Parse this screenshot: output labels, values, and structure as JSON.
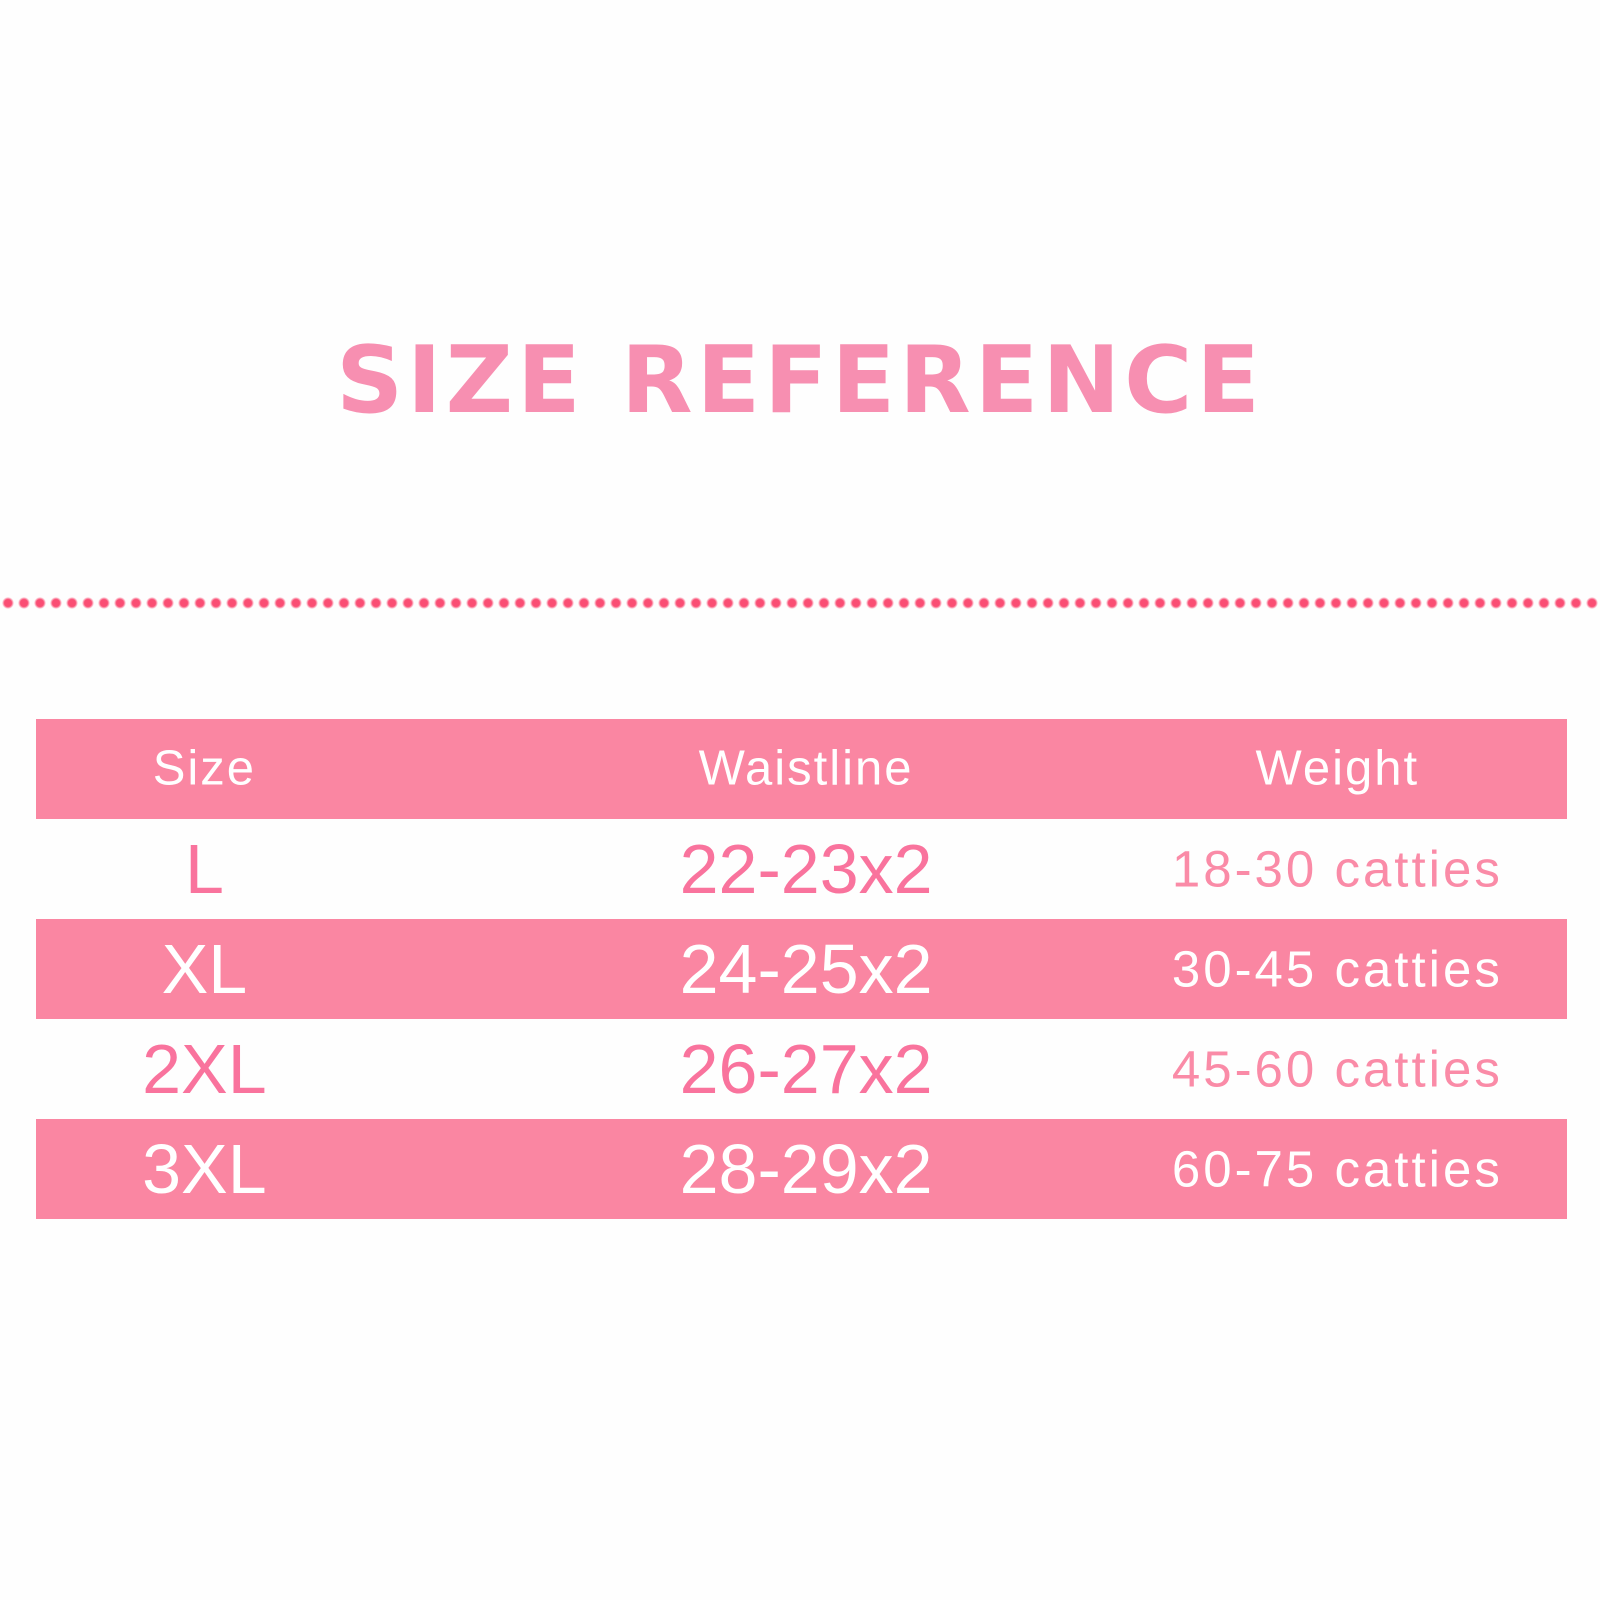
{
  "ui": {
    "background_color": "#FEFEFE",
    "title_color": "#F78FB1",
    "divider_dot_color": "#FA4E74",
    "band_pink": "#FA86A2",
    "value_text_pink": "#F9739D",
    "weight_text_pink": "#FA8BA7",
    "header_text_color": "#FFFFFF"
  },
  "chart_data": {
    "type": "table",
    "title": "SIZE REFERENCE",
    "columns": [
      "Size",
      "Waistline",
      "Weight"
    ],
    "rows": [
      [
        "L",
        "22-23x2",
        "18-30 catties"
      ],
      [
        "XL",
        "24-25x2",
        "30-45 catties"
      ],
      [
        "2XL",
        "26-27x2",
        "45-60 catties"
      ],
      [
        "3XL",
        "28-29x2",
        "60-75 catties"
      ]
    ],
    "layout": {
      "header_background": "pink-band",
      "body_row_backgrounds": [
        "white",
        "pink-band",
        "white",
        "pink-band"
      ],
      "divider_style": "dotted-line-above-table"
    }
  }
}
